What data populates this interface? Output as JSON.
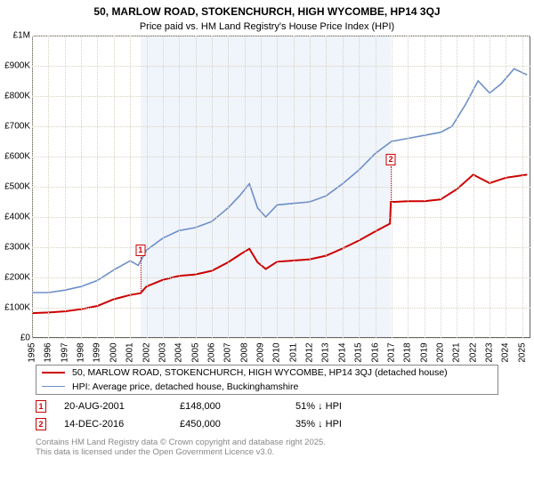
{
  "title": "50, MARLOW ROAD, STOKENCHURCH, HIGH WYCOMBE, HP14 3QJ",
  "subtitle": "Price paid vs. HM Land Registry's House Price Index (HPI)",
  "chart": {
    "type": "line",
    "xlim": [
      1995,
      2025.5
    ],
    "ylim": [
      0,
      1000000
    ],
    "yticks": [
      {
        "v": 0,
        "label": "£0"
      },
      {
        "v": 100000,
        "label": "£100K"
      },
      {
        "v": 200000,
        "label": "£200K"
      },
      {
        "v": 300000,
        "label": "£300K"
      },
      {
        "v": 400000,
        "label": "£400K"
      },
      {
        "v": 500000,
        "label": "£500K"
      },
      {
        "v": 600000,
        "label": "£600K"
      },
      {
        "v": 700000,
        "label": "£700K"
      },
      {
        "v": 800000,
        "label": "£800K"
      },
      {
        "v": 900000,
        "label": "£900K"
      },
      {
        "v": 1000000,
        "label": "£1M"
      }
    ],
    "xticks": [
      1995,
      1996,
      1997,
      1998,
      1999,
      2000,
      2001,
      2002,
      2003,
      2004,
      2005,
      2006,
      2007,
      2008,
      2009,
      2010,
      2011,
      2012,
      2013,
      2014,
      2015,
      2016,
      2017,
      2018,
      2019,
      2020,
      2021,
      2022,
      2023,
      2024,
      2025
    ],
    "xtick_labels": [
      "1995",
      "1996",
      "1997",
      "1998",
      "1999",
      "2000",
      "2001",
      "2002",
      "2003",
      "2004",
      "2005",
      "2006",
      "2007",
      "2008",
      "2009",
      "2010",
      "2011",
      "2012",
      "2013",
      "2014",
      "2015",
      "2016",
      "2017",
      "2018",
      "2019",
      "2020",
      "2021",
      "2022",
      "2023",
      "2024",
      "2025"
    ],
    "shaded_band": {
      "start": 2001.64,
      "end": 2016.96,
      "color": "#f0f4fb"
    },
    "grid_color": "#d9d2c1",
    "border_color": "#666666",
    "background_color": "#ffffff",
    "series": [
      {
        "key": "hpi",
        "label": "HPI: Average price, detached house, Buckinghamshire",
        "color": "#6d8fc7",
        "width": 1.6,
        "points": [
          [
            1995,
            150000
          ],
          [
            1996,
            150000
          ],
          [
            1997,
            158000
          ],
          [
            1998,
            170000
          ],
          [
            1999,
            190000
          ],
          [
            2000,
            225000
          ],
          [
            2001,
            255000
          ],
          [
            2001.5,
            240000
          ],
          [
            2002,
            290000
          ],
          [
            2003,
            330000
          ],
          [
            2004,
            355000
          ],
          [
            2005,
            365000
          ],
          [
            2006,
            385000
          ],
          [
            2007,
            430000
          ],
          [
            2007.7,
            470000
          ],
          [
            2008.3,
            510000
          ],
          [
            2008.8,
            430000
          ],
          [
            2009.3,
            400000
          ],
          [
            2010,
            440000
          ],
          [
            2011,
            445000
          ],
          [
            2012,
            450000
          ],
          [
            2013,
            470000
          ],
          [
            2014,
            510000
          ],
          [
            2015,
            555000
          ],
          [
            2016,
            610000
          ],
          [
            2017,
            650000
          ],
          [
            2018,
            660000
          ],
          [
            2019,
            670000
          ],
          [
            2020,
            680000
          ],
          [
            2020.7,
            700000
          ],
          [
            2021.5,
            770000
          ],
          [
            2022.3,
            850000
          ],
          [
            2023,
            810000
          ],
          [
            2023.7,
            840000
          ],
          [
            2024.5,
            890000
          ],
          [
            2025.3,
            870000
          ]
        ]
      },
      {
        "key": "price",
        "label": "50, MARLOW ROAD, STOKENCHURCH, HIGH WYCOMBE, HP14 3QJ (detached house)",
        "color": "#cc0000",
        "width": 2.0,
        "points": [
          [
            1995,
            82000
          ],
          [
            1996,
            84000
          ],
          [
            1997,
            88000
          ],
          [
            1998,
            95000
          ],
          [
            1999,
            106000
          ],
          [
            2000,
            128000
          ],
          [
            2001,
            142000
          ],
          [
            2001.64,
            148000
          ],
          [
            2002,
            170000
          ],
          [
            2003,
            192000
          ],
          [
            2004,
            205000
          ],
          [
            2005,
            210000
          ],
          [
            2006,
            222000
          ],
          [
            2007,
            250000
          ],
          [
            2007.7,
            275000
          ],
          [
            2008.3,
            295000
          ],
          [
            2008.8,
            250000
          ],
          [
            2009.3,
            228000
          ],
          [
            2010,
            252000
          ],
          [
            2011,
            256000
          ],
          [
            2012,
            260000
          ],
          [
            2013,
            272000
          ],
          [
            2014,
            296000
          ],
          [
            2015,
            322000
          ],
          [
            2016,
            352000
          ],
          [
            2016.9,
            378000
          ],
          [
            2016.96,
            450000
          ],
          [
            2017.2,
            450000
          ],
          [
            2018,
            452000
          ],
          [
            2019,
            452000
          ],
          [
            2020,
            458000
          ],
          [
            2021,
            492000
          ],
          [
            2022,
            540000
          ],
          [
            2023,
            512000
          ],
          [
            2024,
            530000
          ],
          [
            2025.3,
            540000
          ]
        ]
      }
    ],
    "sale_markers": [
      {
        "n": "1",
        "x": 2001.64,
        "y": 148000,
        "color": "#cc0000"
      },
      {
        "n": "2",
        "x": 2016.96,
        "y": 450000,
        "color": "#cc0000"
      }
    ]
  },
  "sales": [
    {
      "n": "1",
      "date": "20-AUG-2001",
      "price": "£148,000",
      "diff": "51% ↓ HPI",
      "color": "#cc0000"
    },
    {
      "n": "2",
      "date": "14-DEC-2016",
      "price": "£450,000",
      "diff": "35% ↓ HPI",
      "color": "#cc0000"
    }
  ],
  "footer": {
    "line1": "Contains HM Land Registry data © Crown copyright and database right 2025.",
    "line2": "This data is licensed under the Open Government Licence v3.0."
  }
}
